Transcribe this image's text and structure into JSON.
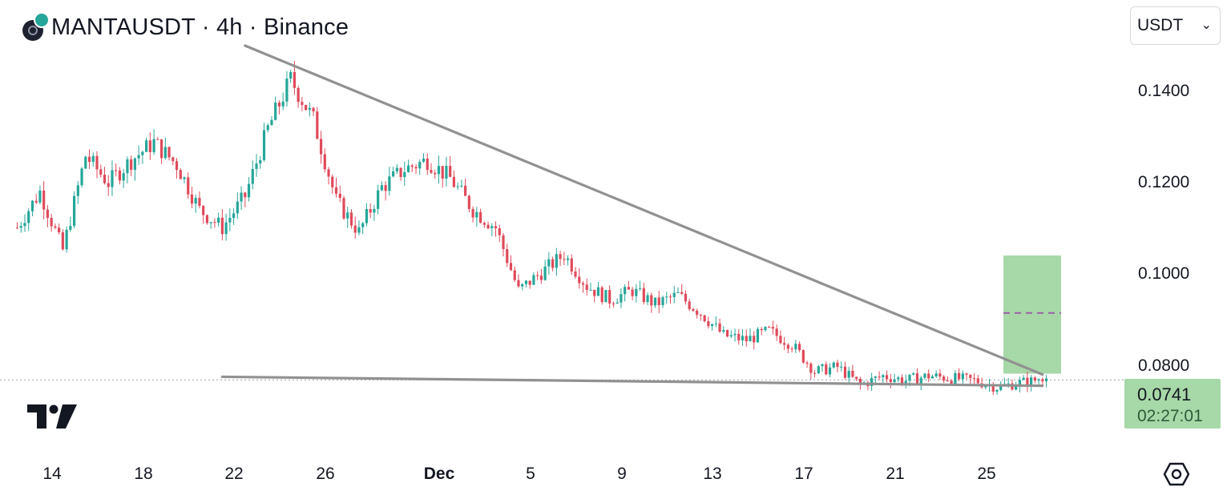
{
  "header": {
    "title": "MANTAUSDT · 4h · Binance",
    "currency_select": "USDT"
  },
  "colors": {
    "up": "#26a69a",
    "down": "#e04a5a",
    "trendline": "#919191",
    "target_zone": "#a7d8a7",
    "target_mid": "#9c5ea8",
    "price_line": "#b0b4bc"
  },
  "price_box": {
    "price": "0.0741",
    "countdown": "02:27:01"
  },
  "chart_data": {
    "type": "candlestick",
    "x_ticks": [
      "14",
      "18",
      "22",
      "26",
      "Dec",
      "5",
      "9",
      "13",
      "17",
      "21",
      "25"
    ],
    "y_ticks": [
      "0.1400",
      "0.1200",
      "0.1000",
      "0.0800"
    ],
    "y_range": [
      0.0665,
      0.1485
    ],
    "grid": false,
    "last_price": 0.0741,
    "trendlines": [
      {
        "start": {
          "date": "Nov 20",
          "price": 0.1485
        },
        "end": {
          "date": "Dec 25",
          "price": 0.0753
        }
      },
      {
        "start": {
          "date": "Nov 19",
          "price": 0.0748
        },
        "end": {
          "date": "Dec 25",
          "price": 0.0728
        }
      }
    ],
    "target_zone": {
      "low": 0.0755,
      "high": 0.1018,
      "mid": 0.089
    },
    "waypoints": [
      {
        "date": "Nov 10",
        "price": 0.108
      },
      {
        "date": "Nov 11",
        "price": 0.116
      },
      {
        "date": "Nov 12",
        "price": 0.103
      },
      {
        "date": "Nov 13",
        "price": 0.124
      },
      {
        "date": "Nov 14",
        "price": 0.118
      },
      {
        "date": "Nov 15",
        "price": 0.123
      },
      {
        "date": "Nov 16",
        "price": 0.127
      },
      {
        "date": "Nov 17",
        "price": 0.122
      },
      {
        "date": "Nov 18",
        "price": 0.112
      },
      {
        "date": "Nov 19",
        "price": 0.108
      },
      {
        "date": "Nov 20",
        "price": 0.115
      },
      {
        "date": "Nov 21",
        "price": 0.13
      },
      {
        "date": "Nov 22",
        "price": 0.141
      },
      {
        "date": "Nov 23",
        "price": 0.132
      },
      {
        "date": "Nov 24",
        "price": 0.114
      },
      {
        "date": "Nov 25",
        "price": 0.107
      },
      {
        "date": "Nov 26",
        "price": 0.117
      },
      {
        "date": "Nov 27",
        "price": 0.121
      },
      {
        "date": "Nov 28",
        "price": 0.123
      },
      {
        "date": "Nov 29",
        "price": 0.119
      },
      {
        "date": "Nov 30",
        "price": 0.112
      },
      {
        "date": "Dec 1",
        "price": 0.108
      },
      {
        "date": "Dec 2",
        "price": 0.094
      },
      {
        "date": "Dec 3",
        "price": 0.098
      },
      {
        "date": "Dec 4",
        "price": 0.102
      },
      {
        "date": "Dec 5",
        "price": 0.095
      },
      {
        "date": "Dec 6",
        "price": 0.092
      },
      {
        "date": "Dec 7",
        "price": 0.094
      },
      {
        "date": "Dec 8",
        "price": 0.091
      },
      {
        "date": "Dec 9",
        "price": 0.093
      },
      {
        "date": "Dec 10",
        "price": 0.089
      },
      {
        "date": "Dec 11",
        "price": 0.084
      },
      {
        "date": "Dec 12",
        "price": 0.083
      },
      {
        "date": "Dec 13",
        "price": 0.085
      },
      {
        "date": "Dec 14",
        "price": 0.082
      },
      {
        "date": "Dec 15",
        "price": 0.076
      },
      {
        "date": "Dec 16",
        "price": 0.077
      },
      {
        "date": "Dec 17",
        "price": 0.073
      },
      {
        "date": "Dec 18",
        "price": 0.075
      },
      {
        "date": "Dec 19",
        "price": 0.074
      },
      {
        "date": "Dec 20",
        "price": 0.075
      },
      {
        "date": "Dec 21",
        "price": 0.0745
      },
      {
        "date": "Dec 22",
        "price": 0.074
      },
      {
        "date": "Dec 23",
        "price": 0.0725
      },
      {
        "date": "Dec 24",
        "price": 0.0735
      },
      {
        "date": "Dec 25",
        "price": 0.0741
      }
    ]
  }
}
